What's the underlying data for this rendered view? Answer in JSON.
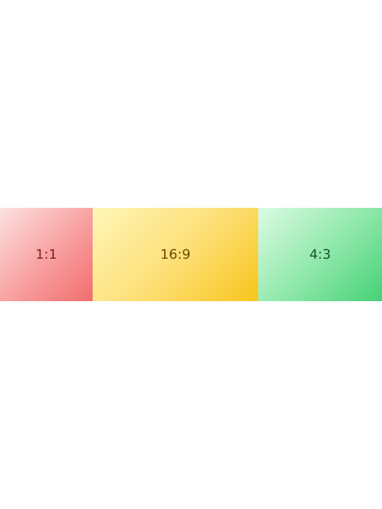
{
  "tiles": [
    {
      "label": "1:1",
      "color_start": "#fde2e2",
      "color_end": "#f26d6d"
    },
    {
      "label": "16:9",
      "color_start": "#fef6b8",
      "color_end": "#f8c51c"
    },
    {
      "label": "4:3",
      "color_start": "#dcfbe4",
      "color_end": "#46d176"
    }
  ]
}
